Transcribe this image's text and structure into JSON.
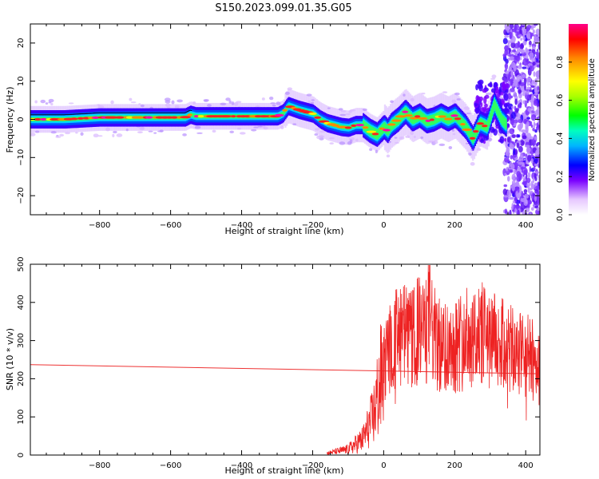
{
  "title": "S150.2023.099.01.35.G05",
  "chart_data": [
    {
      "type": "heatmap",
      "xlabel": "Height of straight line (km)",
      "ylabel": "Frequency (Hz)",
      "xlim": [
        -995,
        440
      ],
      "ylim": [
        -25,
        25
      ],
      "xticks": [
        -800,
        -600,
        -400,
        -200,
        0,
        200,
        400
      ],
      "yticks": [
        -20,
        -10,
        0,
        10,
        20
      ],
      "colorbar": {
        "label": "Normalized spectral amplitude",
        "range": [
          0.0,
          1.0
        ],
        "ticks": [
          "0.0",
          "0.2",
          "0.4",
          "0.6",
          "0.8"
        ]
      },
      "ridge_trace": {
        "x": [
          -995,
          -900,
          -800,
          -700,
          -600,
          -560,
          -545,
          -530,
          -400,
          -300,
          -285,
          -270,
          -255,
          -240,
          -220,
          -200,
          -180,
          -160,
          -140,
          -120,
          -100,
          -80,
          -60,
          -40,
          -20,
          0,
          10,
          20,
          40,
          60,
          80,
          100,
          120,
          140,
          160,
          180,
          200,
          210,
          230,
          250,
          270,
          290,
          310,
          330,
          350
        ],
        "y": [
          0,
          0,
          0.5,
          0.5,
          0.5,
          0.5,
          1.2,
          0.8,
          0.8,
          0.8,
          1.5,
          3.5,
          3,
          2.5,
          2,
          1.5,
          0,
          -1,
          -1.5,
          -2,
          -2.2,
          -1.5,
          -1.5,
          -3,
          -4,
          -2,
          -3,
          -1.5,
          0,
          2,
          0,
          1,
          -0.5,
          0,
          1,
          0,
          1,
          0,
          -2,
          -5,
          -1,
          -2,
          4,
          0,
          -2
        ]
      }
    },
    {
      "type": "line",
      "xlabel": "Height of straight line (km)",
      "ylabel": "SNR (10 * v/v)",
      "xlim": [
        -995,
        440
      ],
      "ylim": [
        0,
        500
      ],
      "xticks": [
        -800,
        -600,
        -400,
        -200,
        0,
        200,
        400
      ],
      "yticks": [
        0,
        100,
        200,
        300,
        400,
        500
      ],
      "series": [
        {
          "style": "noisy",
          "color": "#ee2222",
          "x": [
            -160,
            -100,
            -60,
            -30,
            0,
            20,
            50,
            80,
            100,
            120,
            130,
            140,
            160,
            200,
            240,
            270,
            300,
            330,
            360,
            400,
            440
          ],
          "y": [
            5,
            15,
            40,
            100,
            230,
            290,
            320,
            300,
            330,
            320,
            390,
            310,
            280,
            290,
            310,
            320,
            300,
            290,
            270,
            260,
            235
          ]
        },
        {
          "style": "straight",
          "color": "#ee3333",
          "x": [
            -995,
            440
          ],
          "y": [
            237,
            213
          ]
        }
      ]
    }
  ],
  "colors": {
    "series": "#ee2222",
    "axes": "#000000"
  }
}
